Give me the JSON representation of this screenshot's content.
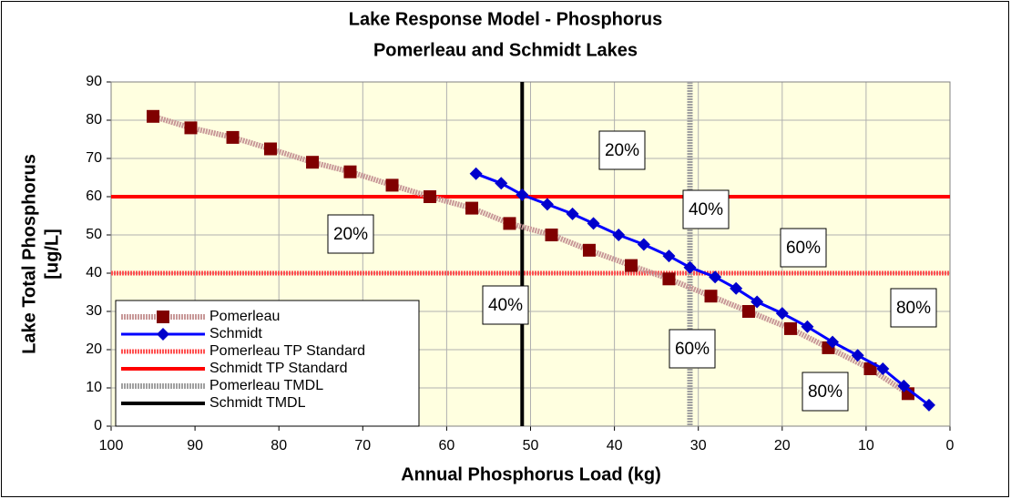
{
  "chart_data": {
    "type": "line",
    "title": "Lake Response Model - Phosphorus",
    "subtitle": "Pomerleau and Schmidt Lakes",
    "x_label": "Annual Phosphorus Load (kg)",
    "y_label": [
      "Lake Total Phosphorus",
      "[ug/L]"
    ],
    "xlim": [
      100,
      0
    ],
    "xticks": [
      100,
      90,
      80,
      70,
      60,
      50,
      40,
      30,
      20,
      10,
      0
    ],
    "ylim": [
      0,
      90
    ],
    "yticks": [
      0,
      10,
      20,
      30,
      40,
      50,
      60,
      70,
      80,
      90
    ],
    "grid": true,
    "legend": "bottom-left",
    "series": [
      {
        "name": "Pomerleau",
        "kind": "line",
        "color": "#c89898",
        "marker": "square",
        "marker_color": "#800000",
        "x": [
          95,
          90.5,
          85.5,
          81,
          76,
          71.5,
          66.5,
          62,
          57,
          52.5,
          47.5,
          43,
          38,
          33.5,
          28.5,
          24,
          19,
          14.5,
          9.5,
          5
        ],
        "values": [
          81,
          78,
          75.5,
          72.5,
          69,
          66.5,
          63,
          60,
          57,
          53,
          50,
          46,
          42,
          38.5,
          34,
          30,
          25.5,
          20.5,
          15,
          8.5
        ]
      },
      {
        "name": "Schmidt",
        "kind": "line",
        "color": "#0000ff",
        "marker": "diamond",
        "marker_color": "#0000cc",
        "x": [
          56.5,
          53.5,
          51,
          48,
          45,
          42.5,
          39.5,
          36.5,
          33.5,
          31,
          28,
          25.5,
          23,
          20,
          17,
          14,
          11,
          8,
          5.5,
          2.5
        ],
        "values": [
          66,
          63.5,
          60.5,
          58,
          55.5,
          53,
          50,
          47.5,
          44.5,
          41.5,
          39,
          36,
          32.5,
          29.5,
          26,
          22,
          18.5,
          15,
          10.5,
          5.5
        ]
      },
      {
        "name": "Pomerleau TP Standard",
        "kind": "hline",
        "color": "#ff5050",
        "value": 40
      },
      {
        "name": "Schmidt TP Standard",
        "kind": "hline",
        "color": "#ff0000",
        "value": 60
      },
      {
        "name": "Pomerleau TMDL",
        "kind": "vline",
        "color": "#a0a0a0",
        "value": 31
      },
      {
        "name": "Schmidt TMDL",
        "kind": "vline",
        "color": "#000000",
        "value": 51
      }
    ],
    "annotations": [
      "20%",
      "40%",
      "60%",
      "80%",
      "20%",
      "40%",
      "60%",
      "80%"
    ]
  }
}
